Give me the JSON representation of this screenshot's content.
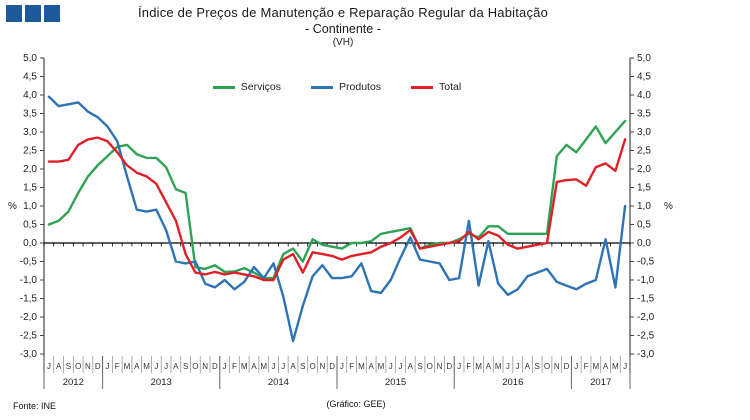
{
  "header": {
    "brand_squares_color": "#1C5A9C"
  },
  "title": {
    "line1": "Índice de Preços de Manutenção e Reparação Regular da Habitação",
    "line2": "- Continente -",
    "line3": "(VH)"
  },
  "legend": {
    "items": [
      {
        "label": "Serviços",
        "color": "#2FA254"
      },
      {
        "label": "Produtos",
        "color": "#2E74B5"
      },
      {
        "label": "Total",
        "color": "#DF2026"
      }
    ]
  },
  "axis": {
    "unit_label": "%"
  },
  "footer": {
    "source": "Fonte: INE",
    "credit": "(Gráfico: GEE)"
  },
  "chart_data": {
    "type": "line",
    "title": "Índice de Preços de Manutenção e Reparação Regular da Habitação - Continente - (VH)",
    "x_unit": "month",
    "start": "2012-07",
    "end": "2017-06",
    "ylabel": "%",
    "ylim": [
      -3.0,
      5.0
    ],
    "ytick_step": 0.5,
    "grid": false,
    "legend_position": "top-center",
    "month_letters": [
      "J",
      "A",
      "S",
      "O",
      "N",
      "D",
      "J",
      "F",
      "M",
      "A",
      "M",
      "J",
      "J",
      "A",
      "S",
      "O",
      "N",
      "D",
      "J",
      "F",
      "M",
      "A",
      "M",
      "J",
      "J",
      "A",
      "S",
      "O",
      "N",
      "D",
      "J",
      "F",
      "M",
      "A",
      "M",
      "J",
      "J",
      "A",
      "S",
      "O",
      "N",
      "D",
      "J",
      "F",
      "M",
      "A",
      "M",
      "J",
      "J",
      "A",
      "S",
      "O",
      "N",
      "D",
      "J",
      "F",
      "M",
      "A",
      "M",
      "J"
    ],
    "years": [
      {
        "label": "2012",
        "start": 0,
        "count": 6
      },
      {
        "label": "2013",
        "start": 6,
        "count": 12
      },
      {
        "label": "2014",
        "start": 18,
        "count": 12
      },
      {
        "label": "2015",
        "start": 30,
        "count": 12
      },
      {
        "label": "2016",
        "start": 42,
        "count": 12
      },
      {
        "label": "2017",
        "start": 54,
        "count": 6
      }
    ],
    "series": [
      {
        "name": "Serviços",
        "color": "#2FA254",
        "values": [
          0.5,
          0.6,
          0.85,
          1.35,
          1.8,
          2.1,
          2.35,
          2.6,
          2.65,
          2.4,
          2.3,
          2.3,
          2.05,
          1.45,
          1.35,
          -0.65,
          -0.7,
          -0.6,
          -0.78,
          -0.77,
          -0.68,
          -0.8,
          -0.95,
          -0.95,
          -0.3,
          -0.15,
          -0.5,
          0.1,
          -0.05,
          -0.1,
          -0.15,
          0.0,
          0.0,
          0.05,
          0.25,
          0.3,
          0.35,
          0.4,
          -0.15,
          -0.05,
          0.0,
          0.0,
          0.1,
          0.25,
          0.15,
          0.45,
          0.45,
          0.25,
          0.25,
          0.25,
          0.25,
          0.25,
          2.35,
          2.65,
          2.45,
          2.8,
          3.15,
          2.7,
          3.0,
          3.3
        ]
      },
      {
        "name": "Produtos",
        "color": "#2E74B5",
        "values": [
          3.95,
          3.7,
          3.75,
          3.8,
          3.55,
          3.4,
          3.15,
          2.75,
          1.8,
          0.9,
          0.85,
          0.9,
          0.35,
          -0.5,
          -0.55,
          -0.5,
          -1.1,
          -1.2,
          -1.0,
          -1.25,
          -1.05,
          -0.65,
          -0.95,
          -0.55,
          -1.45,
          -2.65,
          -1.7,
          -0.9,
          -0.6,
          -0.95,
          -0.95,
          -0.9,
          -0.55,
          -1.3,
          -1.35,
          -1.0,
          -0.4,
          0.15,
          -0.45,
          -0.5,
          -0.55,
          -1.0,
          -0.95,
          0.6,
          -1.15,
          0.05,
          -1.1,
          -1.4,
          -1.25,
          -0.9,
          -0.8,
          -0.7,
          -1.05,
          -1.15,
          -1.25,
          -1.1,
          -1.0,
          0.1,
          -1.2,
          1.0
        ]
      },
      {
        "name": "Total",
        "color": "#DF2026",
        "values": [
          2.2,
          2.2,
          2.25,
          2.65,
          2.8,
          2.85,
          2.75,
          2.45,
          2.1,
          1.9,
          1.8,
          1.6,
          1.1,
          0.6,
          -0.3,
          -0.8,
          -0.85,
          -0.78,
          -0.85,
          -0.8,
          -0.85,
          -0.9,
          -1.0,
          -1.0,
          -0.45,
          -0.3,
          -0.8,
          -0.25,
          -0.3,
          -0.35,
          -0.45,
          -0.35,
          -0.3,
          -0.25,
          -0.1,
          0.0,
          0.15,
          0.35,
          -0.15,
          -0.1,
          -0.05,
          0.0,
          0.05,
          0.3,
          0.1,
          0.3,
          0.2,
          -0.05,
          -0.15,
          -0.1,
          -0.05,
          0.0,
          1.65,
          1.7,
          1.72,
          1.55,
          2.05,
          2.15,
          1.95,
          2.8
        ]
      }
    ]
  }
}
